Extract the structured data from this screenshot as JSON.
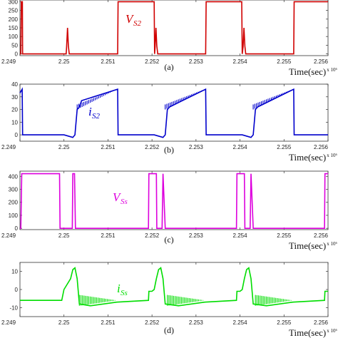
{
  "chart_data": [
    {
      "type": "line",
      "panel_caption": "(a)",
      "signal_label": "V",
      "signal_subscript": "S2",
      "color": "#d00000",
      "xlabel": "Time(sec)",
      "x_exponent": "x 10⁶",
      "xlim": [
        2.249,
        2.256
      ],
      "xticks": [
        "2.249",
        "2.25",
        "2.251",
        "2.252",
        "2.253",
        "2.254",
        "2.255",
        "2.256"
      ],
      "ylim": [
        -10,
        310
      ],
      "yticks": [
        0,
        50,
        100,
        150,
        200,
        250,
        300
      ],
      "x": [
        2.249,
        2.24902,
        2.24903,
        2.249055,
        2.24906,
        2.25005,
        2.25006,
        2.25008,
        2.2501,
        2.25012,
        2.25122,
        2.25123,
        2.25124,
        2.25204,
        2.25205,
        2.252,
        2.25206,
        2.25207,
        2.25209,
        2.25211,
        2.25213,
        2.25322,
        2.25323,
        2.25324,
        2.25404,
        2.25405,
        2.25407,
        2.25409,
        2.25411,
        2.25413,
        2.25522,
        2.25523,
        2.25524,
        2.256
      ],
      "y": [
        0,
        0,
        300,
        300,
        0,
        0,
        40,
        150,
        45,
        0,
        0,
        300,
        300,
        300,
        300,
        300,
        0,
        40,
        150,
        45,
        0,
        0,
        300,
        300,
        300,
        0,
        40,
        150,
        45,
        0,
        0,
        300,
        300,
        300
      ]
    },
    {
      "type": "line",
      "panel_caption": "(b)",
      "signal_label": "i",
      "signal_subscript": "S2",
      "color": "#0000cc",
      "xlabel": "Time(sec)",
      "x_exponent": "x 10⁶",
      "xlim": [
        2.249,
        2.256
      ],
      "xticks": [
        "2.249",
        "2.25",
        "2.251",
        "2.252",
        "2.253",
        "2.254",
        "2.255",
        "2.256"
      ],
      "ylim": [
        -5,
        40
      ],
      "yticks": [
        0,
        10,
        20,
        30,
        40
      ],
      "x": [
        2.249,
        2.24905,
        2.24906,
        2.25,
        2.2502,
        2.25025,
        2.2503,
        2.25035,
        2.2504,
        2.25122,
        2.25123,
        2.25205,
        2.25225,
        2.2523,
        2.25235,
        2.2524,
        2.25322,
        2.25323,
        2.25405,
        2.25425,
        2.2543,
        2.25435,
        2.2544,
        2.25522,
        2.25523,
        2.256
      ],
      "y": [
        33,
        36,
        0,
        0,
        -2,
        0,
        20,
        22,
        27,
        36,
        0,
        0,
        -2,
        0,
        20,
        22,
        36,
        0,
        0,
        -2,
        0,
        20,
        22,
        36,
        0,
        0
      ]
    },
    {
      "type": "line",
      "panel_caption": "(c)",
      "signal_label": "V",
      "signal_subscript": "Ss",
      "color": "#dd00dd",
      "xlabel": "Time(sec)",
      "x_exponent": "x 10⁶",
      "xlim": [
        2.249,
        2.256
      ],
      "xticks": [
        "2.249",
        "2.25",
        "2.251",
        "2.252",
        "2.253",
        "2.254",
        "2.255",
        "2.256"
      ],
      "ylim": [
        -10,
        440
      ],
      "yticks": [
        0,
        100,
        200,
        300,
        400
      ],
      "x": [
        2.249,
        2.24902,
        2.24904,
        2.2499,
        2.24991,
        2.25019,
        2.2502,
        2.25024,
        2.25026,
        2.2503,
        2.25031,
        2.25192,
        2.25193,
        2.2521,
        2.25211,
        2.25223,
        2.25225,
        2.2523,
        2.25231,
        2.25392,
        2.25393,
        2.2541,
        2.25411,
        2.25423,
        2.25425,
        2.2543,
        2.25431,
        2.25592,
        2.25593,
        2.256
      ],
      "y": [
        0,
        0,
        420,
        420,
        0,
        0,
        420,
        420,
        0,
        0,
        0,
        0,
        420,
        420,
        0,
        0,
        420,
        0,
        0,
        0,
        420,
        420,
        0,
        0,
        420,
        0,
        0,
        0,
        420,
        420
      ]
    },
    {
      "type": "line",
      "panel_caption": "(d)",
      "signal_label": "i",
      "signal_subscript": "Ss",
      "color": "#00dd00",
      "xlabel": "Time(sec)",
      "x_exponent": "x 10⁶",
      "xlim": [
        2.249,
        2.256
      ],
      "xticks": [
        "2.249",
        "2.25",
        "2.251",
        "2.252",
        "2.253",
        "2.254",
        "2.255",
        "2.256"
      ],
      "ylim": [
        -15,
        15
      ],
      "yticks": [
        -10,
        0,
        10
      ],
      "x": [
        2.249,
        2.24902,
        2.24903,
        2.2499,
        2.24995,
        2.25,
        2.25015,
        2.2502,
        2.25025,
        2.2503,
        2.25035,
        2.2506,
        2.2512,
        2.25192,
        2.25193,
        2.252,
        2.25205,
        2.2521,
        2.25215,
        2.2522,
        2.25225,
        2.2523,
        2.2526,
        2.2532,
        2.25392,
        2.25393,
        2.254,
        2.25405,
        2.2541,
        2.25415,
        2.2542,
        2.25425,
        2.2543,
        2.2546,
        2.2552,
        2.25592,
        2.25593,
        2.256
      ],
      "y": [
        -6,
        -6,
        -6,
        -6,
        -6,
        0,
        6,
        11,
        12,
        6,
        -8,
        -9,
        -7,
        -6,
        -1,
        -1,
        0,
        6,
        11,
        12,
        6,
        -8,
        -9,
        -7,
        -6,
        -1,
        -1,
        0,
        6,
        11,
        12,
        6,
        -8,
        -9,
        -7,
        -6,
        -1,
        -1
      ]
    }
  ]
}
